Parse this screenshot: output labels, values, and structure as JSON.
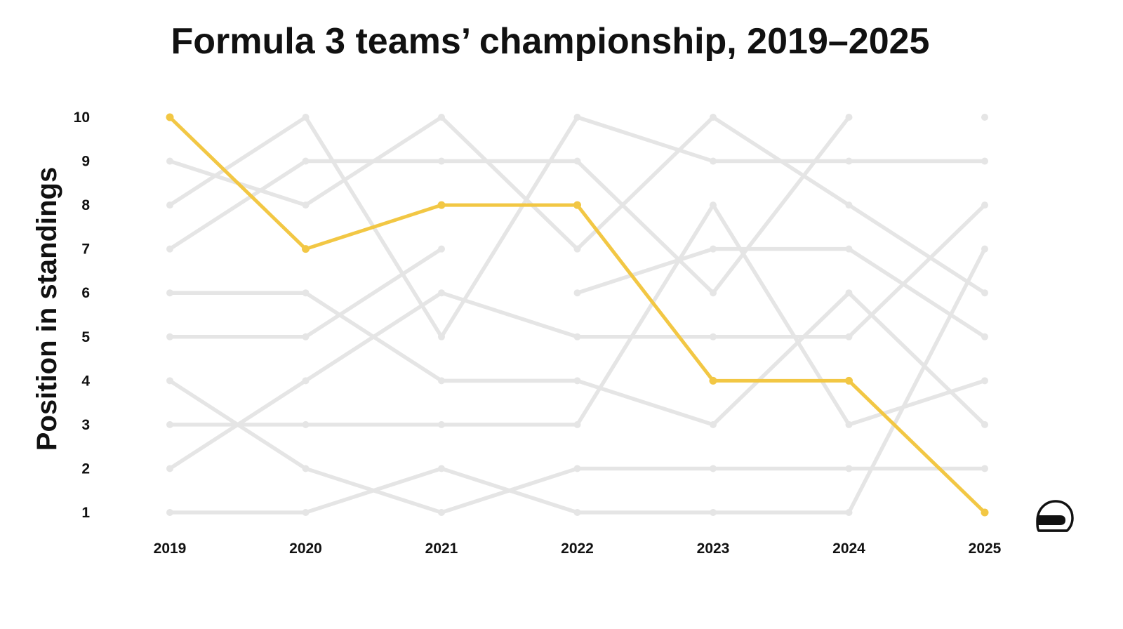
{
  "chart_data": {
    "type": "line",
    "title": "Formula 3 teams’ championship, 2019–2025",
    "xlabel": "",
    "ylabel": "Position in standings",
    "x": [
      "2019",
      "2020",
      "2021",
      "2022",
      "2023",
      "2024",
      "2025"
    ],
    "y_ticks": [
      "1",
      "2",
      "3",
      "4",
      "5",
      "6",
      "7",
      "8",
      "9",
      "10"
    ],
    "ylim": [
      1,
      10
    ],
    "grid": false,
    "highlight_color": "#F2C744",
    "background_color": "#E5E5E5",
    "highlight": {
      "values": [
        10,
        7,
        8,
        8,
        4,
        4,
        1
      ]
    },
    "series": [
      {
        "values": [
          9,
          8,
          10,
          7,
          10,
          8,
          6
        ]
      },
      {
        "values": [
          8,
          10,
          5,
          10,
          9,
          9,
          9
        ]
      },
      {
        "values": [
          7,
          9,
          9,
          9,
          6,
          10,
          null
        ]
      },
      {
        "values": [
          6,
          6,
          4,
          4,
          3,
          6,
          3
        ]
      },
      {
        "values": [
          5,
          5,
          7,
          null,
          null,
          null,
          null
        ]
      },
      {
        "values": [
          4,
          2,
          1,
          2,
          2,
          2,
          2
        ]
      },
      {
        "values": [
          3,
          3,
          3,
          3,
          8,
          3,
          4
        ]
      },
      {
        "values": [
          2,
          4,
          6,
          5,
          5,
          5,
          8
        ]
      },
      {
        "values": [
          1,
          1,
          2,
          1,
          1,
          1,
          7
        ]
      },
      {
        "values": [
          null,
          null,
          null,
          6,
          7,
          7,
          5
        ]
      }
    ],
    "empty_markers": [
      {
        "x": "2025",
        "y": 10
      }
    ],
    "icon": "helmet-icon"
  }
}
